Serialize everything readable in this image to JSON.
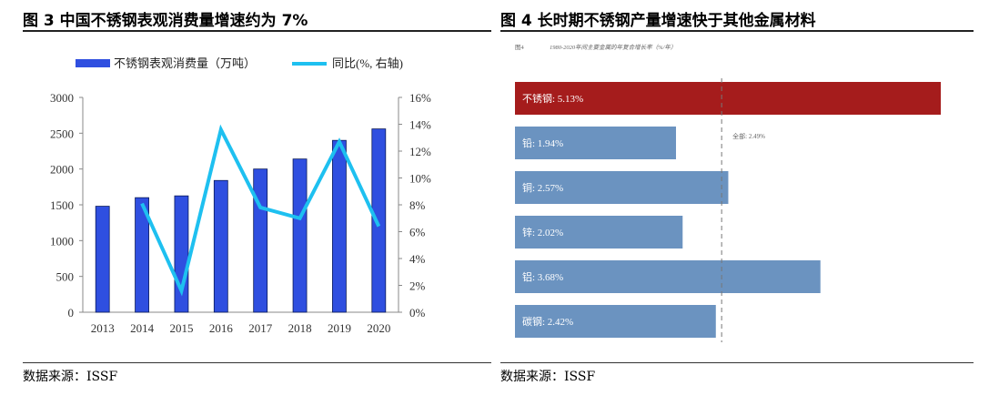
{
  "left": {
    "title": "图 3   中国不锈钢表观消费量增速约为 7%",
    "source": "数据来源：ISSF",
    "chart_data": {
      "type": "bar",
      "categories": [
        "2013",
        "2014",
        "2015",
        "2016",
        "2017",
        "2018",
        "2019",
        "2020"
      ],
      "series": [
        {
          "name": "不锈钢表观消费量（万吨）",
          "type": "bar",
          "axis": "left",
          "values": [
            1480,
            1600,
            1625,
            1840,
            2000,
            2140,
            2400,
            2560
          ],
          "color": "#2f4fe0"
        },
        {
          "name": "同比(%, 右轴)",
          "type": "line",
          "axis": "right",
          "values": [
            null,
            8.1,
            1.6,
            13.6,
            7.8,
            7.0,
            12.7,
            6.4
          ],
          "color": "#1ec0f0"
        }
      ],
      "ylim_left": [
        0,
        3000
      ],
      "yticks_left": [
        "0",
        "500",
        "1000",
        "1500",
        "2000",
        "2500",
        "3000"
      ],
      "ylim_right": [
        0,
        16
      ],
      "yticks_right": [
        "0%",
        "2%",
        "4%",
        "6%",
        "8%",
        "10%",
        "12%",
        "14%",
        "16%"
      ],
      "legend": "top"
    }
  },
  "right": {
    "title": "图 4  长时期不锈钢产量增速快于其他金属材料",
    "subtitle": "1980-2020年间主要金属的年复合增长率（%/年）",
    "fig_label": "图4",
    "source": "数据来源：ISSF",
    "chart_data": {
      "type": "bar",
      "orientation": "horizontal",
      "categories": [
        "不锈钢",
        "铅",
        "铜",
        "锌",
        "铝",
        "碳钢"
      ],
      "labels": [
        "不锈钢: 5.13%",
        "铅: 1.94%",
        "铜: 2.57%",
        "锌: 2.02%",
        "铝: 3.68%",
        "碳钢: 2.42%"
      ],
      "values": [
        5.13,
        1.94,
        2.57,
        2.02,
        3.68,
        2.42
      ],
      "colors": [
        "#a51c1c",
        "#6b93c0",
        "#6b93c0",
        "#6b93c0",
        "#6b93c0",
        "#6b93c0"
      ],
      "reference_label": "全部: 2.49%",
      "reference_value": 2.49
    }
  }
}
